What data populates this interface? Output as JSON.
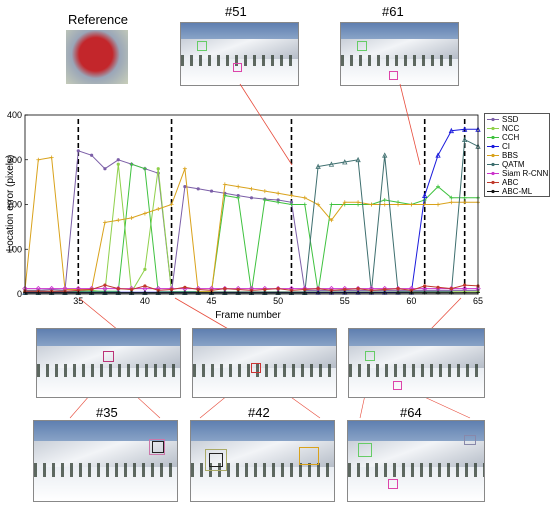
{
  "labels": {
    "reference": "Reference",
    "frame51": "#51",
    "frame61": "#61",
    "frame35": "#35",
    "frame42": "#42",
    "frame64": "#64"
  },
  "chart_data": {
    "type": "line",
    "xlabel": "Frame number",
    "ylabel": "Location error (pixels)",
    "xlim": [
      31,
      65
    ],
    "ylim": [
      0,
      400
    ],
    "xticks": [
      35,
      40,
      45,
      50,
      55,
      60,
      65
    ],
    "yticks": [
      0,
      100,
      200,
      300,
      400
    ],
    "marked_frames": [
      35,
      42,
      51,
      61,
      64
    ],
    "x": [
      31,
      32,
      33,
      34,
      35,
      36,
      37,
      38,
      39,
      40,
      41,
      42,
      43,
      44,
      45,
      46,
      47,
      48,
      49,
      50,
      51,
      52,
      53,
      54,
      55,
      56,
      57,
      58,
      59,
      60,
      61,
      62,
      63,
      64,
      65
    ],
    "series": [
      {
        "name": "SSD",
        "color": "#7b5ea7",
        "marker": "o",
        "values": [
          8,
          8,
          10,
          8,
          320,
          310,
          280,
          300,
          290,
          280,
          270,
          5,
          240,
          235,
          230,
          225,
          220,
          215,
          212,
          210,
          205,
          8,
          8,
          8,
          8,
          8,
          8,
          8,
          8,
          8,
          8,
          8,
          8,
          8,
          8
        ]
      },
      {
        "name": "NCC",
        "color": "#8fd04b",
        "marker": "o",
        "values": [
          5,
          5,
          5,
          5,
          5,
          8,
          5,
          290,
          5,
          55,
          280,
          5,
          5,
          5,
          5,
          5,
          5,
          5,
          5,
          5,
          5,
          5,
          5,
          5,
          5,
          5,
          5,
          5,
          5,
          5,
          5,
          5,
          5,
          5,
          5
        ]
      },
      {
        "name": "CCH",
        "color": "#3fc23f",
        "marker": "*",
        "values": [
          6,
          6,
          6,
          6,
          6,
          6,
          6,
          6,
          290,
          280,
          5,
          5,
          5,
          5,
          5,
          220,
          215,
          5,
          210,
          205,
          200,
          200,
          5,
          200,
          200,
          200,
          200,
          210,
          205,
          200,
          210,
          240,
          215,
          215,
          215
        ]
      },
      {
        "name": "CI",
        "color": "#1a1adc",
        "marker": "^",
        "values": [
          4,
          4,
          4,
          4,
          4,
          4,
          4,
          4,
          4,
          4,
          4,
          4,
          4,
          4,
          4,
          4,
          4,
          4,
          4,
          4,
          4,
          4,
          4,
          4,
          4,
          4,
          4,
          4,
          4,
          4,
          220,
          310,
          365,
          368,
          368
        ]
      },
      {
        "name": "BBS",
        "color": "#d9a21b",
        "marker": "+",
        "values": [
          10,
          300,
          305,
          10,
          10,
          10,
          160,
          165,
          170,
          180,
          190,
          200,
          280,
          5,
          5,
          245,
          240,
          235,
          230,
          225,
          220,
          215,
          200,
          165,
          205,
          205,
          200,
          200,
          200,
          200,
          200,
          200,
          205,
          205,
          205
        ]
      },
      {
        "name": "QATM",
        "color": "#3d6e6e",
        "marker": ">",
        "values": [
          3,
          3,
          3,
          3,
          3,
          3,
          3,
          3,
          3,
          3,
          3,
          3,
          3,
          3,
          3,
          3,
          3,
          3,
          3,
          3,
          3,
          3,
          285,
          290,
          295,
          300,
          5,
          310,
          5,
          5,
          5,
          5,
          5,
          345,
          330
        ]
      },
      {
        "name": "Siam R-CNN",
        "color": "#cc33cc",
        "marker": "diamond",
        "values": [
          12,
          12,
          12,
          12,
          12,
          12,
          12,
          12,
          12,
          12,
          12,
          12,
          12,
          12,
          12,
          12,
          12,
          12,
          12,
          12,
          12,
          12,
          12,
          12,
          12,
          12,
          12,
          12,
          12,
          12,
          12,
          12,
          12,
          12,
          12
        ]
      },
      {
        "name": "ABC",
        "color": "#c0392b",
        "marker": "o",
        "values": [
          6,
          6,
          6,
          6,
          8,
          10,
          20,
          12,
          10,
          18,
          8,
          10,
          15,
          10,
          8,
          12,
          10,
          8,
          10,
          12,
          8,
          10,
          12,
          8,
          10,
          12,
          8,
          10,
          12,
          8,
          18,
          15,
          12,
          20,
          18
        ]
      },
      {
        "name": "ABC-ML",
        "color": "#111111",
        "marker": "*",
        "values": [
          3,
          3,
          3,
          3,
          3,
          3,
          3,
          3,
          3,
          3,
          3,
          3,
          3,
          3,
          3,
          3,
          3,
          3,
          3,
          3,
          3,
          3,
          3,
          3,
          3,
          3,
          3,
          3,
          3,
          3,
          3,
          3,
          3,
          3,
          3
        ]
      }
    ]
  }
}
